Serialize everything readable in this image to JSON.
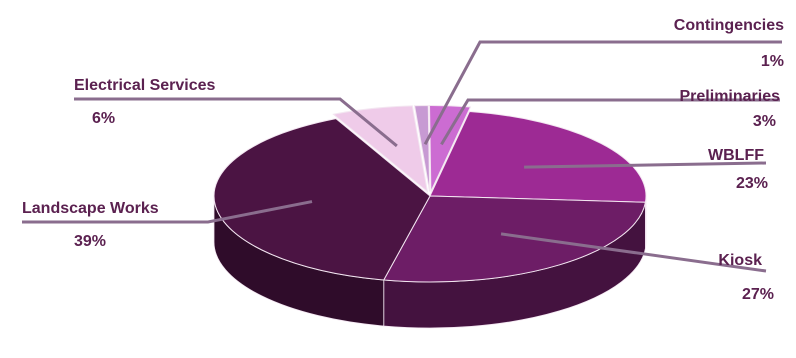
{
  "chart_data": {
    "type": "pie",
    "style": "3d-exploded-slices",
    "slices": [
      {
        "name": "Contingencies",
        "pct_label": "1%",
        "value": 1,
        "color": "#c79ad3"
      },
      {
        "name": "Preliminaries",
        "pct_label": "3%",
        "value": 3,
        "color": "#cc6cd2"
      },
      {
        "name": "WBLFF",
        "pct_label": "23%",
        "value": 23,
        "color": "#9d2a94"
      },
      {
        "name": "Kiosk",
        "pct_label": "27%",
        "value": 27,
        "color": "#6d1d66"
      },
      {
        "name": "Landscape Works",
        "pct_label": "39%",
        "value": 39,
        "color": "#4b1443"
      },
      {
        "name": "Electrical Services",
        "pct_label": "6%",
        "value": 6,
        "color": "#efcbe9"
      }
    ],
    "leader_line_color": "#8a6d8e",
    "label_color": "#5b2150"
  }
}
